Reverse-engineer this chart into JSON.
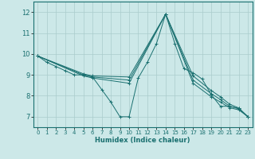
{
  "xlabel": "Humidex (Indice chaleur)",
  "bg_color": "#cce8e8",
  "line_color": "#1a7070",
  "grid_color": "#aacccc",
  "xlim": [
    -0.5,
    23.5
  ],
  "ylim": [
    6.5,
    12.5
  ],
  "yticks": [
    7,
    8,
    9,
    10,
    11,
    12
  ],
  "xticks": [
    0,
    1,
    2,
    3,
    4,
    5,
    6,
    7,
    8,
    9,
    10,
    11,
    12,
    13,
    14,
    15,
    16,
    17,
    18,
    19,
    20,
    21,
    22,
    23
  ],
  "series": [
    {
      "x": [
        0,
        1,
        2,
        3,
        4,
        5,
        6,
        7,
        8,
        9,
        10,
        11,
        12,
        13,
        14,
        15,
        16,
        17,
        18,
        19,
        20,
        21,
        22,
        23
      ],
      "y": [
        9.9,
        9.6,
        9.4,
        9.2,
        9.0,
        9.0,
        8.9,
        8.3,
        7.7,
        7.0,
        7.0,
        8.85,
        9.6,
        10.5,
        11.9,
        10.5,
        9.3,
        9.1,
        8.8,
        8.05,
        7.5,
        7.5,
        7.4,
        7.0
      ]
    },
    {
      "x": [
        0,
        5,
        6,
        10,
        14,
        17,
        19,
        20,
        21,
        22,
        23
      ],
      "y": [
        9.9,
        9.05,
        8.95,
        8.9,
        11.9,
        8.95,
        8.25,
        7.95,
        7.6,
        7.42,
        7.0
      ]
    },
    {
      "x": [
        0,
        5,
        6,
        10,
        14,
        17,
        19,
        20,
        21,
        22,
        23
      ],
      "y": [
        9.9,
        9.0,
        8.9,
        8.75,
        11.9,
        8.75,
        8.1,
        7.82,
        7.5,
        7.38,
        7.0
      ]
    },
    {
      "x": [
        0,
        5,
        6,
        10,
        14,
        17,
        19,
        20,
        21,
        22,
        23
      ],
      "y": [
        9.9,
        8.95,
        8.85,
        8.6,
        11.9,
        8.6,
        7.95,
        7.7,
        7.43,
        7.33,
        7.0
      ]
    }
  ]
}
